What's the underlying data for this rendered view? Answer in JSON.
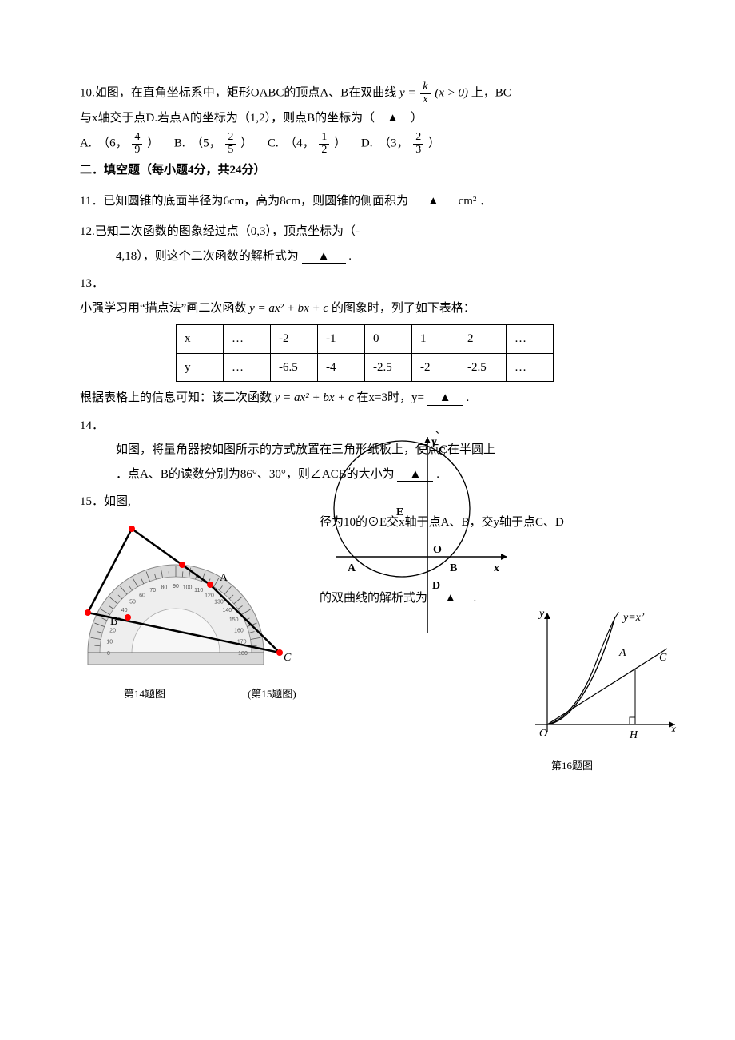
{
  "q10": {
    "stem_a": "10.如图，在直角坐标系中，矩形OABC的顶点A、B在双曲线",
    "stem_b": "上，BC",
    "hyperbola_lhs": "y =",
    "hyperbola_num": "k",
    "hyperbola_den": "x",
    "hyperbola_cond": "(x > 0)",
    "line2": "与x轴交于点D.若点A的坐标为（1,2），则点B的坐标为（　▲　）",
    "optA_label": "A.　（6，",
    "optA_num": "4",
    "optA_den": "9",
    "optA_close": "）",
    "optB_label": "B.　（5，",
    "optB_num": "2",
    "optB_den": "5",
    "optB_close": "）",
    "optC_label": "C.　（4，",
    "optC_num": "1",
    "optC_den": "2",
    "optC_close": "）",
    "optD_label": "D.　（3，",
    "optD_num": "2",
    "optD_den": "3",
    "optD_close": "）"
  },
  "section2": "二．填空题（每小题4分，共24分）",
  "q11": {
    "a": "11．已知圆锥的底面半径为6cm，高为8cm，则圆锥的侧面积为",
    "b": "cm² ．",
    "tri": "▲"
  },
  "q12": {
    "a": "12.已知二次函数的图象经过点（0,3），顶点坐标为（-",
    "b": "4,18），则这个二次函数的解析式为",
    "tri": "▲",
    "c": "."
  },
  "q13": {
    "num": "13．",
    "a": "小强学习用“描点法”画二次函数",
    "expr": "y = ax² + bx + c",
    "b": "的图象时，列了如下表格：",
    "table_row_x": [
      "x",
      "…",
      "-2",
      "-1",
      "0",
      "1",
      "2",
      "…"
    ],
    "table_row_y": [
      "y",
      "…",
      "-6.5",
      "-4",
      "-2.5",
      "-2",
      "-2.5",
      "…"
    ],
    "c": "根据表格上的信息可知：该二次函数",
    "d": "在x=3时，y=",
    "tri": "▲",
    "e": "."
  },
  "q14": {
    "num": "14．",
    "a": "如图，将量角器按如图所示的方式放置在三角形纸板上，使点C在半圆上",
    "b": "．点A、B的读数分别为86°、30°，则∠ACB的大小为",
    "tri": "▲",
    "c": "."
  },
  "q15": {
    "num": "15．如图,",
    "a": "径为10的⊙E交x轴于点A、B，交y轴于点C、D",
    "b": "的双曲线的解析式为",
    "tri": "▲",
    "c": "."
  },
  "captions": {
    "c14": "第14题图",
    "c15": "(第15题图)",
    "c16": "第16题图"
  },
  "circle_labels": {
    "y": "y",
    "C": "C",
    "E": "E",
    "O": "O",
    "A": "A",
    "B": "B",
    "D": "D",
    "x": "x"
  },
  "parabola_labels": {
    "y": "y",
    "eq": "y=x²",
    "A": "A",
    "C": "C",
    "O": "O",
    "H": "H",
    "x": "x"
  },
  "protractor_labels": {
    "A": "A",
    "B": "B",
    "C": "C"
  },
  "colors": {
    "text": "#000000",
    "red_dot": "#ff0000",
    "grey": "#808080",
    "lightgrey": "#d0d0d0"
  }
}
